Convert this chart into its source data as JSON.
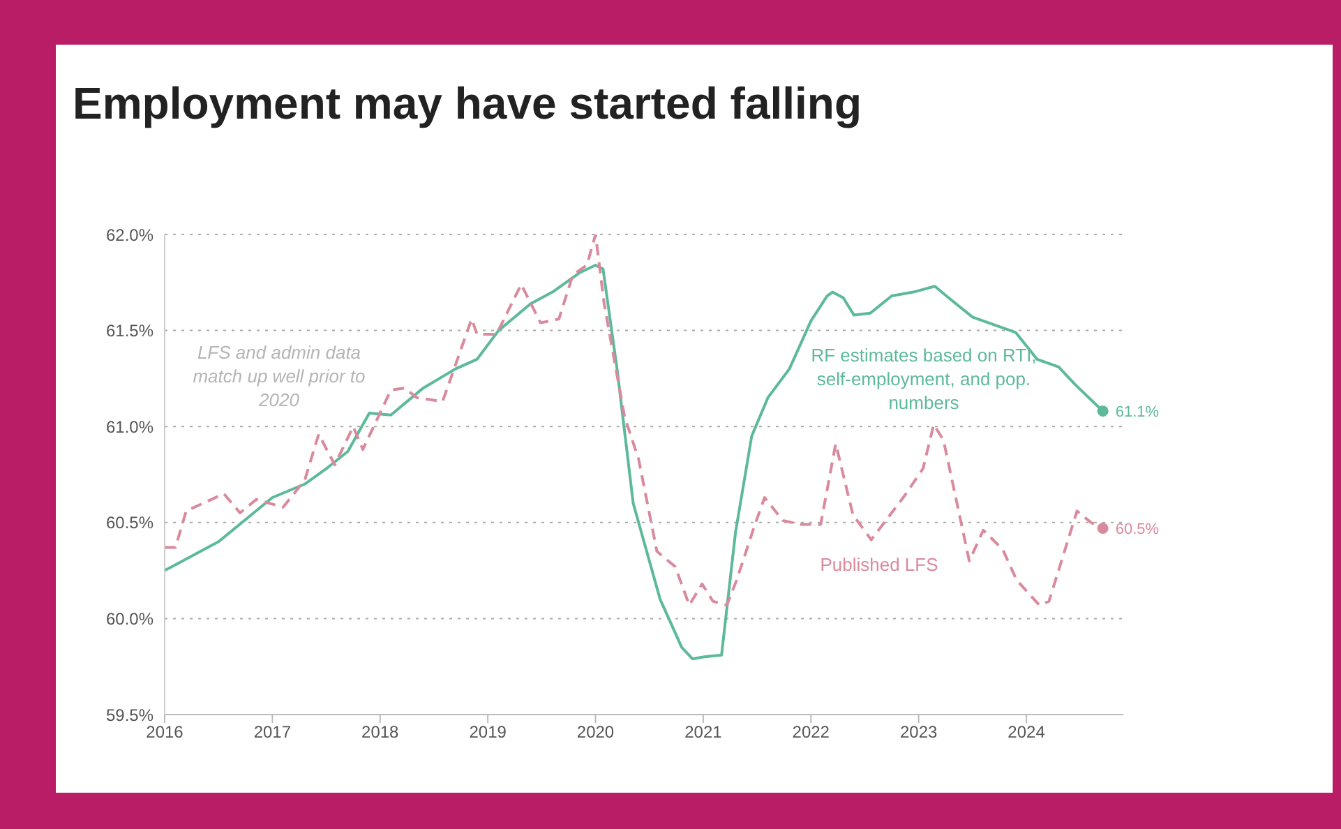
{
  "chart_data": {
    "type": "line",
    "title": "Employment may have started falling",
    "xlim": [
      2016,
      2024.9
    ],
    "xticks": [
      2016,
      2017,
      2018,
      2019,
      2020,
      2021,
      2022,
      2023,
      2024
    ],
    "ylim": [
      59.5,
      62
    ],
    "yticks": [
      {
        "value": 59.5,
        "label": "59.5%"
      },
      {
        "value": 60,
        "label": "60.0%"
      },
      {
        "value": 60.5,
        "label": "60.5%"
      },
      {
        "value": 61,
        "label": "61.0%"
      },
      {
        "value": 61.5,
        "label": "61.5%"
      },
      {
        "value": 62,
        "label": "62.0%"
      }
    ],
    "grid": "y",
    "marker": "none",
    "series": [
      {
        "name": "RF estimates based on RTI, self-employment, and pop. numbers",
        "color": "#5db99b",
        "line_style": "solid",
        "x": [
          2016,
          2016.5,
          2017,
          2017.3,
          2017.5,
          2017.7,
          2017.9,
          2018.1,
          2018.4,
          2018.7,
          2018.9,
          2019.1,
          2019.4,
          2019.6,
          2019.85,
          2020,
          2020.07,
          2020.2,
          2020.35,
          2020.6,
          2020.8,
          2020.9,
          2021,
          2021.17,
          2021.3,
          2021.45,
          2021.6,
          2021.8,
          2022,
          2022.15,
          2022.2,
          2022.3,
          2022.4,
          2022.55,
          2022.75,
          2022.95,
          2023.15,
          2023.3,
          2023.5,
          2023.75,
          2023.9,
          2024.1,
          2024.3,
          2024.45,
          2024.71
        ],
        "values": [
          60.25,
          60.4,
          60.63,
          60.7,
          60.78,
          60.87,
          61.07,
          61.06,
          61.2,
          61.3,
          61.35,
          61.5,
          61.64,
          61.7,
          61.8,
          61.84,
          61.82,
          61.3,
          60.6,
          60.1,
          59.85,
          59.79,
          59.8,
          59.81,
          60.45,
          60.95,
          61.15,
          61.3,
          61.55,
          61.68,
          61.7,
          61.67,
          61.58,
          61.59,
          61.68,
          61.7,
          61.73,
          61.66,
          61.57,
          61.52,
          61.49,
          61.35,
          61.31,
          61.22,
          61.08
        ]
      },
      {
        "name": "Published LFS",
        "color": "#d98a9c",
        "line_style": "dashed",
        "x": [
          2016,
          2016.1,
          2016.2,
          2016.55,
          2016.7,
          2016.85,
          2017.1,
          2017.3,
          2017.43,
          2017.58,
          2017.75,
          2017.84,
          2018.1,
          2018.23,
          2018.34,
          2018.58,
          2018.85,
          2018.9,
          2019.08,
          2019.31,
          2019.49,
          2019.66,
          2019.79,
          2019.92,
          2020,
          2020.08,
          2020.27,
          2020.4,
          2020.57,
          2020.74,
          2020.87,
          2020.99,
          2021.09,
          2021.22,
          2021.31,
          2021.48,
          2021.57,
          2021.74,
          2021.91,
          2022.09,
          2022.23,
          2022.39,
          2022.56,
          2022.87,
          2023.04,
          2023.14,
          2023.23,
          2023.47,
          2023.6,
          2023.78,
          2023.91,
          2024.12,
          2024.21,
          2024.47,
          2024.6,
          2024.71
        ],
        "values": [
          60.37,
          60.37,
          60.56,
          60.65,
          60.55,
          60.62,
          60.58,
          60.72,
          60.96,
          60.8,
          61,
          60.88,
          61.19,
          61.2,
          61.15,
          61.13,
          61.56,
          61.48,
          61.48,
          61.74,
          61.54,
          61.56,
          61.79,
          61.84,
          62,
          61.64,
          61.05,
          60.83,
          60.35,
          60.27,
          60.07,
          60.18,
          60.09,
          60.07,
          60.2,
          60.49,
          60.63,
          60.51,
          60.49,
          60.49,
          60.91,
          60.54,
          60.41,
          60.64,
          60.78,
          61.01,
          60.93,
          60.3,
          60.46,
          60.36,
          60.2,
          60.07,
          60.09,
          60.56,
          60.5,
          60.47
        ]
      }
    ],
    "annotations": [
      "LFS and admin data match up well prior to 2020",
      {
        "text": "61.1%",
        "x": 2024.71,
        "y": 61.08
      },
      {
        "text": "60.5%",
        "x": 2024.71,
        "y": 60.47
      }
    ]
  }
}
